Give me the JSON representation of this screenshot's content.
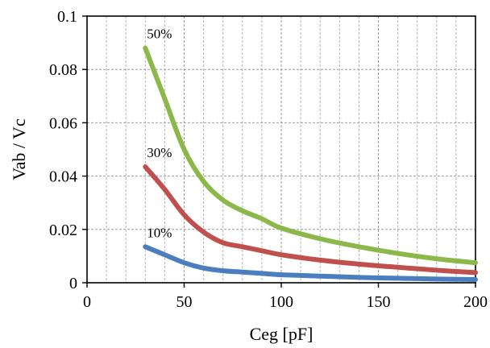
{
  "chart_data": {
    "type": "line",
    "title": "",
    "xlabel": "Ceg [pF]",
    "ylabel": "Vab / Vc",
    "xlim": [
      0,
      200
    ],
    "ylim": [
      0,
      0.1
    ],
    "x_ticks": [
      0,
      50,
      100,
      150,
      200
    ],
    "x_tick_labels": [
      "0",
      "50",
      "100",
      "150",
      "200"
    ],
    "y_ticks": [
      0,
      0.02,
      0.04,
      0.06,
      0.08,
      0.1
    ],
    "y_tick_labels": [
      "0",
      "0.02",
      "0.04",
      "0.06",
      "0.08",
      "0.1"
    ],
    "x_minor_step": 10,
    "grid": true,
    "legend": "none",
    "series": [
      {
        "label": "50%",
        "color": "#8cb84a",
        "x": [
          30,
          40,
          50,
          60,
          70,
          80,
          90,
          100,
          120,
          140,
          160,
          180,
          200
        ],
        "y": [
          0.088,
          0.069,
          0.05,
          0.038,
          0.031,
          0.027,
          0.024,
          0.0205,
          0.0165,
          0.0135,
          0.011,
          0.009,
          0.0075
        ]
      },
      {
        "label": "30%",
        "color": "#c0504d",
        "x": [
          30,
          40,
          50,
          60,
          70,
          80,
          90,
          100,
          120,
          140,
          160,
          180,
          200
        ],
        "y": [
          0.0435,
          0.035,
          0.0255,
          0.019,
          0.015,
          0.0135,
          0.012,
          0.0105,
          0.0085,
          0.007,
          0.0058,
          0.0047,
          0.0038
        ]
      },
      {
        "label": "10%",
        "color": "#4a7ebf",
        "x": [
          30,
          40,
          50,
          60,
          70,
          80,
          90,
          100,
          120,
          140,
          160,
          180,
          200
        ],
        "y": [
          0.0135,
          0.0105,
          0.0075,
          0.0055,
          0.0045,
          0.004,
          0.0035,
          0.003,
          0.0025,
          0.002,
          0.0017,
          0.0014,
          0.0012
        ]
      }
    ]
  }
}
